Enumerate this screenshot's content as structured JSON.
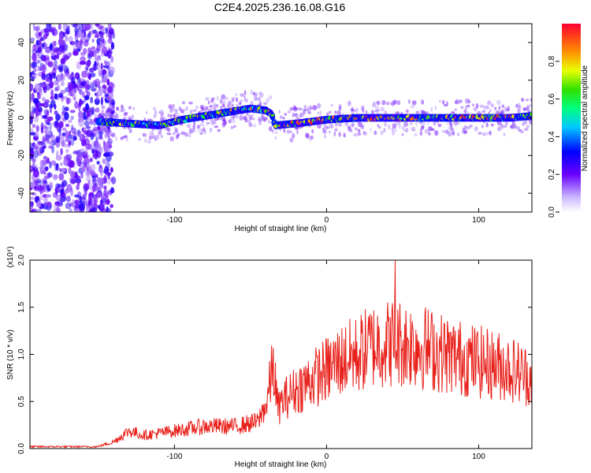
{
  "title": "C2E4.2025.236.16.08.G16",
  "chart_data": [
    {
      "type": "heatmap",
      "xlabel": "Height of straight line (km)",
      "ylabel": "Frequency (Hz)",
      "xlim": [
        -195,
        135
      ],
      "ylim": [
        -50,
        50
      ],
      "xticks": [
        -100,
        0,
        100
      ],
      "yticks": [
        -40,
        -20,
        0,
        20,
        40
      ],
      "colorbar": {
        "label": "Normalized spectral amplitude",
        "range": [
          0,
          1
        ],
        "ticks": [
          "0.0",
          "0.2",
          "0.4",
          "0.6",
          "0.8"
        ],
        "tick_values": [
          0.0,
          0.2,
          0.4,
          0.6,
          0.8
        ]
      },
      "signal_ridge": {
        "x": [
          -150,
          -130,
          -110,
          -95,
          -80,
          -65,
          -50,
          -40,
          -36,
          -34,
          -20,
          0,
          20,
          40,
          60,
          80,
          100,
          120,
          135
        ],
        "freq": [
          -2,
          -3,
          -4,
          -1,
          1,
          3,
          5,
          4,
          2,
          -4,
          -3,
          -1,
          0,
          0,
          0,
          0,
          0,
          0,
          1
        ]
      }
    },
    {
      "type": "line",
      "xlabel": "Height of straight line (km)",
      "ylabel": "SNR (10 * v/v)",
      "yscale_label": "(x10⁴)",
      "xlim": [
        -195,
        135
      ],
      "ylim": [
        0.0,
        2.0
      ],
      "xticks": [
        -100,
        0,
        100
      ],
      "yticks": [
        "0.0",
        "0.5",
        "1.0",
        "1.5",
        "2.0"
      ],
      "ytick_values": [
        0.0,
        0.5,
        1.0,
        1.5,
        2.0
      ],
      "envelope": {
        "x": [
          -195,
          -150,
          -140,
          -130,
          -120,
          -100,
          -80,
          -60,
          -45,
          -40,
          -35,
          -32,
          -28,
          -20,
          -10,
          0,
          10,
          20,
          30,
          45,
          60,
          80,
          100,
          120,
          135
        ],
        "y": [
          0.02,
          0.02,
          0.06,
          0.16,
          0.12,
          0.16,
          0.2,
          0.2,
          0.24,
          0.4,
          0.85,
          0.4,
          0.5,
          0.6,
          0.7,
          0.8,
          0.9,
          0.95,
          1.05,
          1.08,
          1.05,
          0.95,
          0.88,
          0.82,
          0.72
        ]
      },
      "peak": {
        "x": 45,
        "y": 2.0
      }
    }
  ]
}
